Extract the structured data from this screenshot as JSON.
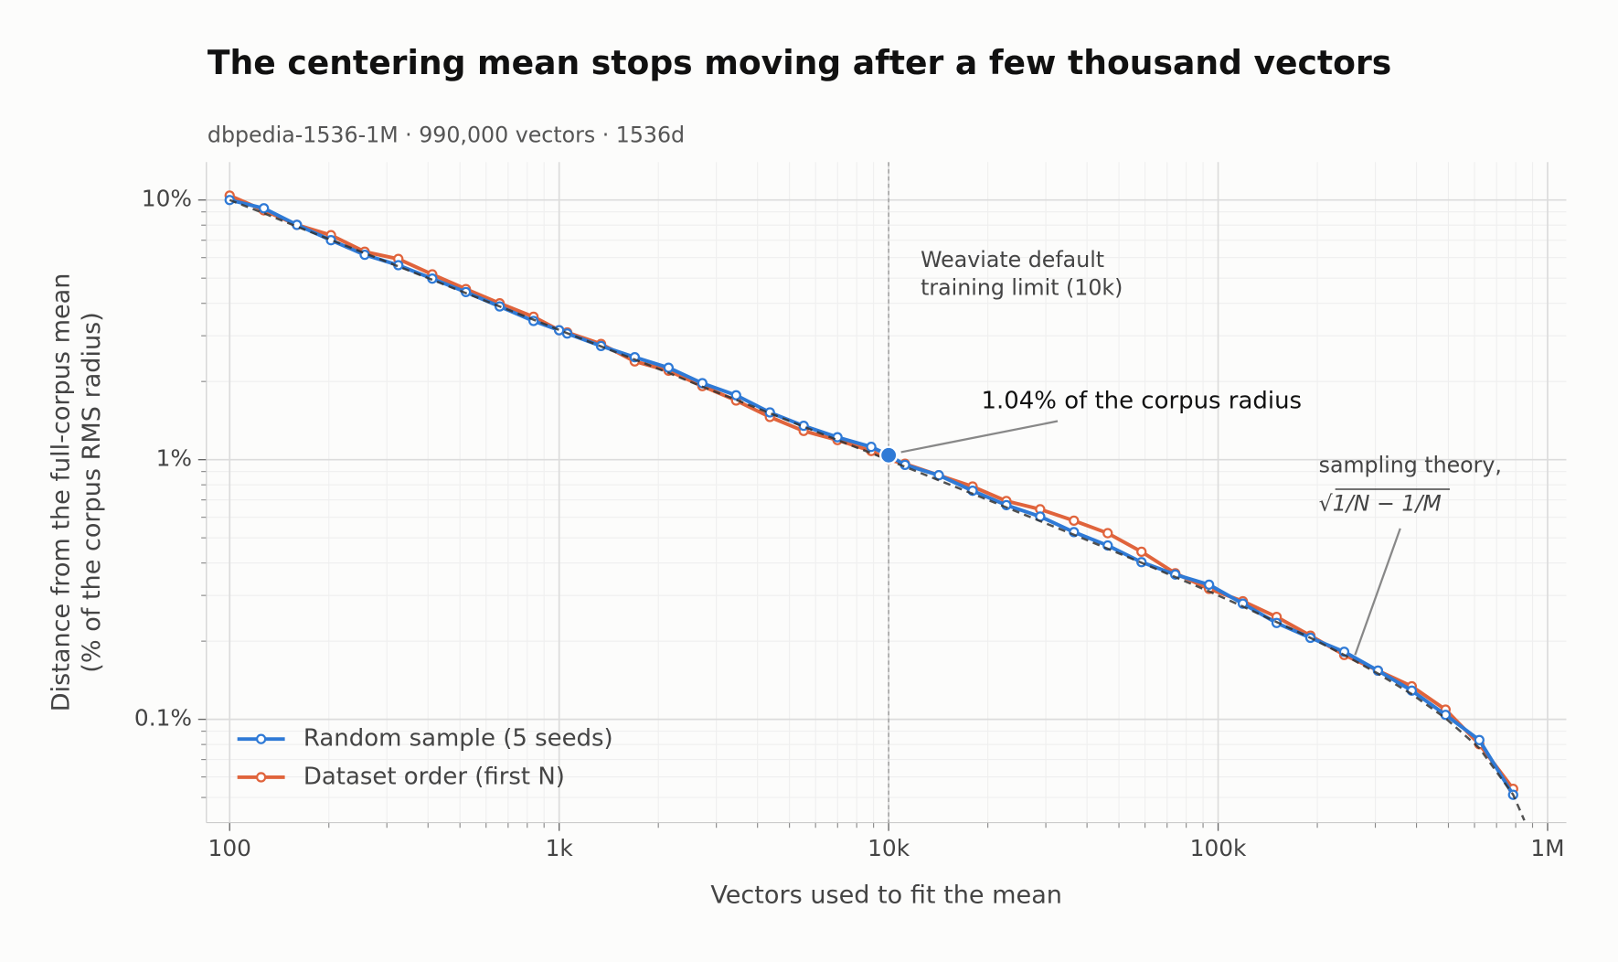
{
  "chart_data": {
    "type": "line",
    "title": "The centering mean stops moving after a few thousand vectors",
    "subtitle": "dbpedia-1536-1M · 990,000 vectors · 1536d",
    "x_label": "Vectors used to fit the mean",
    "y_label": [
      "Distance from the full-corpus mean",
      "(% of the corpus RMS radius)"
    ],
    "x_scale": "log",
    "y_scale": "log",
    "grid": true,
    "legend_position": "lower left",
    "xlim": [
      85,
      1140000
    ],
    "ylim": [
      0.04,
      14
    ],
    "xticks": [
      100,
      {
        "value": 1000,
        "label": "1k"
      },
      {
        "value": 10000,
        "label": "10k"
      },
      {
        "value": 100000,
        "label": "100k"
      },
      {
        "value": 1000000,
        "label": "1M"
      }
    ],
    "yticks": [
      {
        "value": 0.1,
        "label": "0.1%"
      },
      {
        "value": 1,
        "label": "1%"
      },
      {
        "value": 10,
        "label": "10%"
      }
    ],
    "xminor_ticks": [
      200,
      300,
      400,
      500,
      600,
      700,
      800,
      900,
      2000,
      3000,
      4000,
      5000,
      6000,
      7000,
      8000,
      9000,
      20000,
      30000,
      40000,
      50000,
      60000,
      70000,
      80000,
      90000,
      200000,
      300000,
      400000,
      500000,
      600000,
      700000,
      800000,
      900000
    ],
    "yminor_ticks": [
      0.05,
      0.06,
      0.07,
      0.08,
      0.09,
      0.2,
      0.3,
      0.4,
      0.5,
      0.6,
      0.7,
      0.8,
      0.9,
      2,
      3,
      4,
      5,
      6,
      7,
      8,
      9
    ],
    "x": [
      100,
      127,
      160,
      203,
      257,
      325,
      412,
      521,
      660,
      836,
      1000,
      1058,
      1340,
      1696,
      2148,
      2720,
      3444,
      4361,
      5522,
      6993,
      8855,
      10000,
      11213,
      14199,
      17980,
      22768,
      28831,
      36508,
      46229,
      58540,
      74128,
      93868,
      118864,
      150517,
      190598,
      241353,
      305623,
      387008,
      490065,
      620566,
      785818
    ],
    "series": [
      {
        "name": "Dataset order (first N)",
        "color": "#e0643c",
        "values": [
          10.4,
          9.12,
          8.02,
          7.32,
          6.32,
          5.93,
          5.17,
          4.54,
          4.0,
          3.55,
          3.15,
          3.09,
          2.79,
          2.39,
          2.2,
          1.92,
          1.69,
          1.46,
          1.29,
          1.19,
          1.08,
          1.0,
          0.964,
          0.871,
          0.788,
          0.693,
          0.644,
          0.582,
          0.521,
          0.442,
          0.365,
          0.318,
          0.285,
          0.248,
          0.21,
          0.177,
          0.154,
          0.134,
          0.109,
          0.0802,
          0.054
        ]
      },
      {
        "name": "Random sample (5 seeds)",
        "color": "#2f7ad6",
        "values": [
          10.0,
          9.29,
          8.02,
          7.0,
          6.15,
          5.61,
          4.98,
          4.42,
          3.89,
          3.42,
          3.15,
          3.06,
          2.74,
          2.48,
          2.26,
          1.97,
          1.77,
          1.52,
          1.35,
          1.22,
          1.12,
          1.04,
          0.955,
          0.871,
          0.759,
          0.668,
          0.604,
          0.526,
          0.467,
          0.403,
          0.361,
          0.33,
          0.279,
          0.235,
          0.206,
          0.182,
          0.154,
          0.129,
          0.104,
          0.0832,
          0.0512
        ]
      }
    ],
    "theory": {
      "color": "#333333",
      "x": [
        100,
        127,
        160,
        203,
        257,
        325,
        412,
        521,
        660,
        836,
        1000,
        1058,
        1340,
        1696,
        2148,
        2720,
        3444,
        4361,
        5522,
        6993,
        8855,
        10000,
        11213,
        14199,
        17980,
        22768,
        28831,
        36508,
        46229,
        58540,
        74128,
        93868,
        118864,
        150517,
        190598,
        241353,
        305623,
        387008,
        490065,
        620566,
        785818,
        850000
      ],
      "values": [
        10.0,
        8.89,
        7.9,
        7.02,
        6.24,
        5.55,
        4.93,
        4.38,
        3.89,
        3.46,
        3.16,
        3.07,
        2.73,
        2.43,
        2.16,
        1.91,
        1.7,
        1.51,
        1.34,
        1.19,
        1.06,
        0.995,
        0.939,
        0.833,
        0.739,
        0.655,
        0.58,
        0.514,
        0.454,
        0.401,
        0.353,
        0.311,
        0.272,
        0.237,
        0.206,
        0.177,
        0.15,
        0.125,
        0.101,
        0.0775,
        0.0513,
        0.0408
      ]
    },
    "vline": {
      "x": 10000,
      "text": [
        "Weaviate default",
        "training limit (10k)"
      ]
    },
    "annotations": [
      {
        "text": "1.04% of the corpus radius",
        "x": 10000,
        "y": 1.04,
        "color": "#2f7ad6"
      },
      {
        "text": [
          "sampling theory,",
          "√1/N − 1/M"
        ],
        "x": 260400,
        "y": 0.177
      }
    ]
  }
}
